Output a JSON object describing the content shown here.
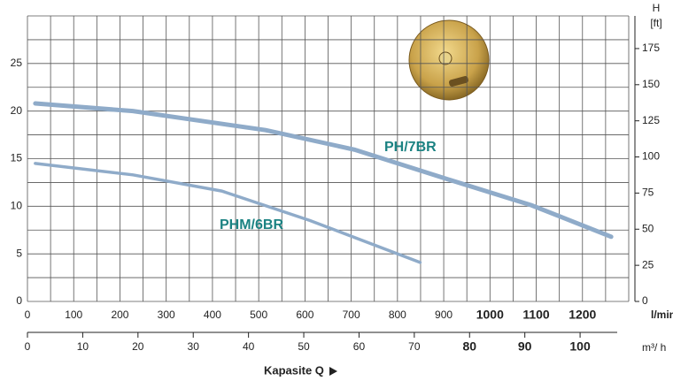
{
  "chart_data": {
    "type": "line",
    "series": [
      {
        "name": "PH/7BR",
        "color": "#8fabc9",
        "x": [
          17,
          228,
          515,
          707,
          898,
          1090,
          1262
        ],
        "values": [
          20.8,
          20.0,
          18.0,
          15.95,
          13.0,
          10.1,
          6.8
        ]
      },
      {
        "name": "PHM/6BR",
        "color": "#8fabc9",
        "x": [
          17,
          228,
          420,
          611,
          849
        ],
        "values": [
          14.5,
          13.3,
          11.6,
          8.5,
          4.1
        ]
      }
    ],
    "xlim": [
      0,
      1300
    ],
    "xticks": [
      0,
      100,
      200,
      300,
      400,
      500,
      600,
      700,
      800,
      900,
      1000,
      1100,
      1200
    ],
    "xlabel": "l/min",
    "x2lim": [
      0,
      108.8
    ],
    "x2ticks": [
      0,
      10,
      20,
      30,
      40,
      50,
      60,
      70,
      80,
      90,
      100
    ],
    "x2label": "m³/ h",
    "ylim": [
      0,
      30
    ],
    "yticks": [
      0,
      5,
      10,
      15,
      20,
      25
    ],
    "y2lim": [
      0,
      197.6
    ],
    "y2ticks": [
      0,
      25,
      50,
      75,
      100,
      125,
      150,
      175
    ],
    "y2label_top": "H",
    "y2label": "[ft]",
    "xgrid": [
      0,
      50,
      100,
      150,
      200,
      250,
      300,
      350,
      400,
      450,
      500,
      550,
      600,
      650,
      700,
      750,
      800,
      850,
      900,
      950,
      1000,
      1050,
      1100,
      1150,
      1200,
      1250,
      1300
    ],
    "ygrid": [
      0,
      2.5,
      5,
      7.5,
      10,
      12.5,
      15,
      17.5,
      20,
      22.5,
      25,
      27.5,
      30
    ],
    "grid": true,
    "label_color": "#1b8282",
    "caption": "Kapasite Q"
  }
}
